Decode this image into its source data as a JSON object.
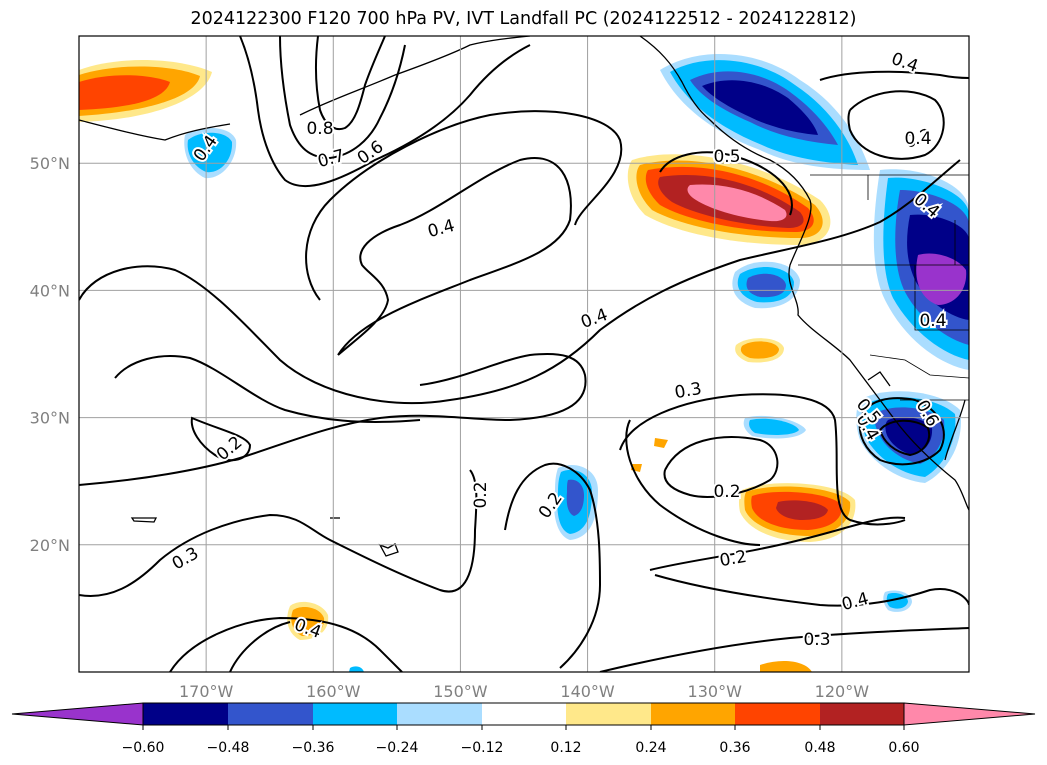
{
  "chart_data": {
    "type": "map-contour",
    "title": "2024122300 F120 700 hPa PV, IVT Landfall PC (2024122512 - 2024122812)",
    "projection": "plate-carree",
    "lon_range": [
      -180,
      -110
    ],
    "lat_range": [
      10,
      60
    ],
    "grid": true,
    "lon_ticks": [
      "170°W",
      "160°W",
      "150°W",
      "140°W",
      "130°W",
      "120°W"
    ],
    "lat_ticks": [
      "20°N",
      "30°N",
      "40°N",
      "50°N"
    ],
    "colorbar": {
      "orientation": "horizontal",
      "extend": "both",
      "tick_labels": [
        "−0.60",
        "−0.48",
        "−0.36",
        "−0.24",
        "−0.12",
        "0.12",
        "0.24",
        "0.36",
        "0.48",
        "0.60"
      ],
      "colors": [
        "#9933cc",
        "#000088",
        "#3355cc",
        "#00bbff",
        "#aaddff",
        "#ffffff",
        "#ffe88a",
        "#ffa500",
        "#ff4400",
        "#b22222",
        "#ff88aa",
        "#ff88aa"
      ]
    },
    "pv_contour_labels": [
      "0.8",
      "0.7",
      "0.6",
      "0.4",
      "0.4",
      "0.4",
      "0.2",
      "0.3",
      "0.2",
      "0.2",
      "0.4",
      "0.3",
      "0.2",
      "0.2",
      "0.4",
      "0.3",
      "0.2",
      "0.4",
      "0.5",
      "0.4",
      "0.6",
      "0.4",
      "0.5",
      "0.4",
      "0.4"
    ]
  }
}
